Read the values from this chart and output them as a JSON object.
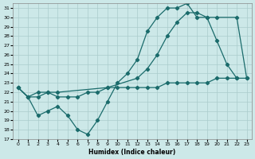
{
  "xlabel": "Humidex (Indice chaleur)",
  "bg_color": "#cce8e8",
  "grid_color": "#aacccc",
  "line_color": "#1a6b6b",
  "xlim": [
    -0.5,
    23.5
  ],
  "ylim": [
    17,
    31.5
  ],
  "xticks": [
    0,
    1,
    2,
    3,
    4,
    5,
    6,
    7,
    8,
    9,
    10,
    11,
    12,
    13,
    14,
    15,
    16,
    17,
    18,
    19,
    20,
    21,
    22,
    23
  ],
  "yticks": [
    17,
    18,
    19,
    20,
    21,
    22,
    23,
    24,
    25,
    26,
    27,
    28,
    29,
    30,
    31
  ],
  "line1_x": [
    0,
    1,
    2,
    3,
    4,
    5,
    6,
    7,
    8,
    9,
    10,
    11,
    12,
    13,
    14,
    15,
    16,
    17,
    18,
    19,
    20,
    21,
    22
  ],
  "line1_y": [
    22.5,
    21.5,
    19.5,
    20.0,
    20.5,
    19.5,
    18.0,
    17.5,
    19.0,
    21.0,
    23.0,
    24.0,
    25.5,
    28.5,
    30.0,
    31.0,
    31.0,
    31.5,
    30.0,
    30.0,
    27.5,
    25.0,
    23.5
  ],
  "line2_x": [
    0,
    1,
    2,
    3,
    4,
    9,
    12,
    13,
    14,
    15,
    16,
    17,
    18,
    19,
    20,
    22,
    23
  ],
  "line2_y": [
    22.5,
    21.5,
    21.5,
    22.0,
    22.0,
    22.5,
    23.5,
    24.5,
    26.0,
    28.0,
    29.5,
    30.5,
    30.5,
    30.0,
    30.0,
    30.0,
    23.5
  ],
  "line3_x": [
    0,
    1,
    2,
    3,
    4,
    5,
    6,
    7,
    8,
    9,
    10,
    11,
    12,
    13,
    14,
    15,
    16,
    17,
    18,
    19,
    20,
    21,
    22,
    23
  ],
  "line3_y": [
    22.5,
    21.5,
    22.0,
    22.0,
    21.5,
    21.5,
    21.5,
    22.0,
    22.0,
    22.5,
    22.5,
    22.5,
    22.5,
    22.5,
    22.5,
    23.0,
    23.0,
    23.0,
    23.0,
    23.0,
    23.5,
    23.5,
    23.5,
    23.5
  ]
}
